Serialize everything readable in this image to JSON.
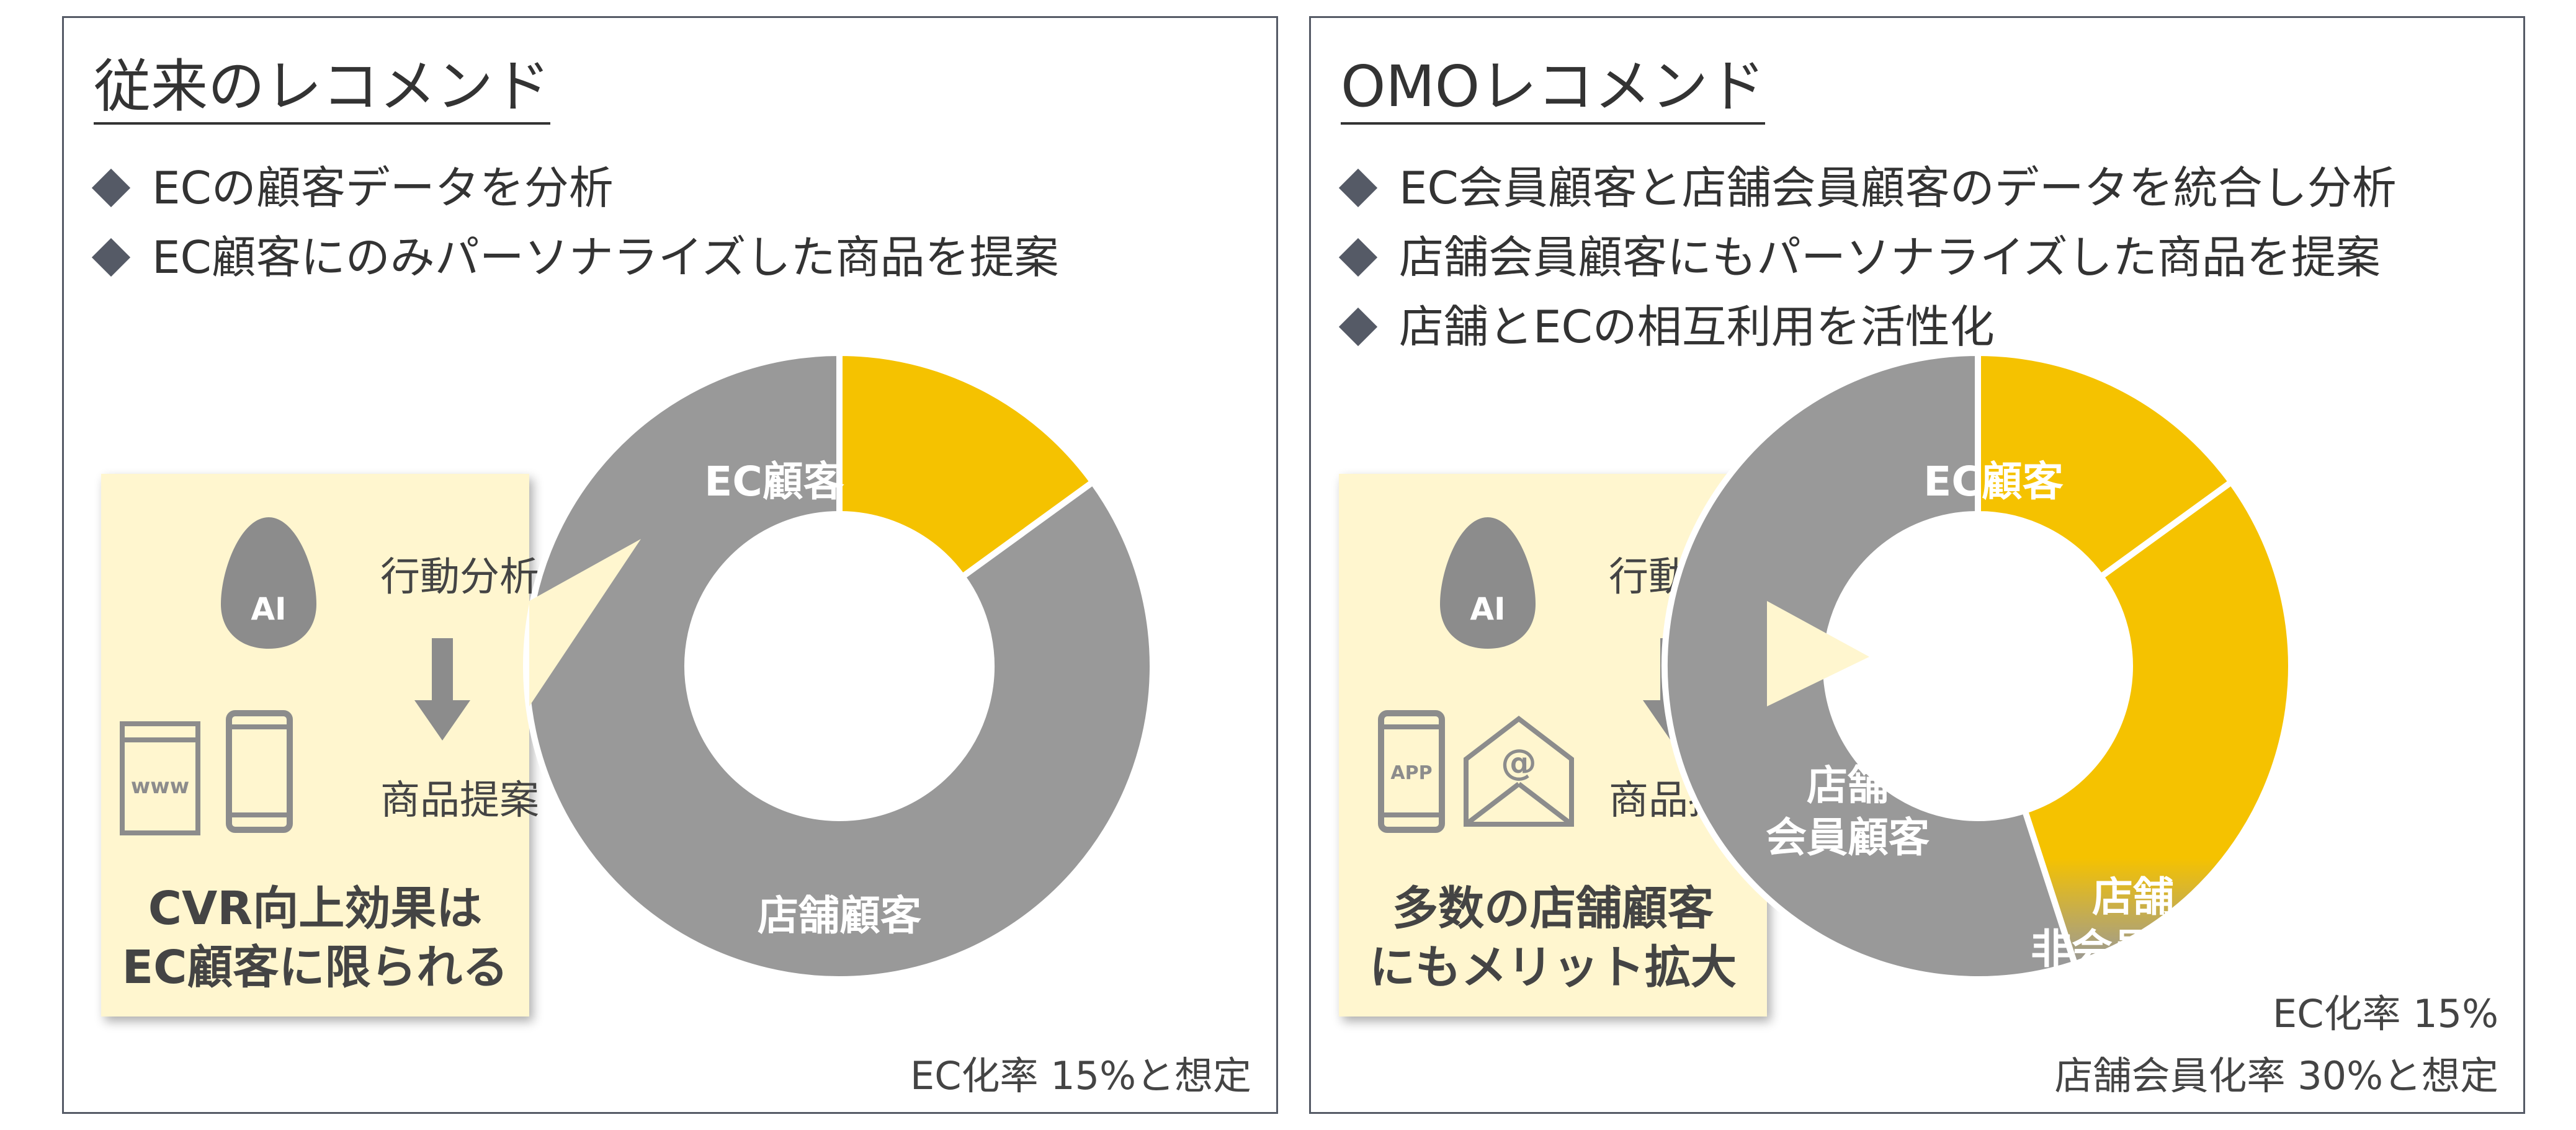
{
  "left": {
    "title": "従来のレコメンド",
    "bullets": [
      "ECの顧客データを分析",
      "EC顧客にのみパーソナライズした商品を提案"
    ],
    "callout": {
      "ai_label": "AI",
      "step1": "行動分析",
      "step2": "商品提案",
      "device_label": "www",
      "result_line1": "CVR向上効果は",
      "result_line2": "EC顧客に限られる"
    },
    "note": "EC化率 15%と想定"
  },
  "right": {
    "title": "OMOレコメンド",
    "bullets": [
      "EC会員顧客と店舗会員顧客のデータを統合し分析",
      "店舗会員顧客にもパーソナライズした商品を提案",
      "店舗とECの相互利用を活性化"
    ],
    "callout": {
      "ai_label": "AI",
      "step1": "行動分析",
      "step2": "商品提案",
      "app_label": "APP",
      "mail_symbol": "@",
      "result_line1": "多数の店舗顧客",
      "result_line2": "にもメリット拡大"
    },
    "note_line1": "EC化率 15%",
    "note_line2": "店舗会員化率 30%と想定"
  },
  "chart_data": [
    {
      "type": "pie",
      "variant": "donut",
      "labels": [
        "EC顧客",
        "店舗顧客"
      ],
      "values": [
        15,
        85
      ],
      "colors": [
        "#f5c200",
        "#999999"
      ]
    },
    {
      "type": "pie",
      "variant": "donut",
      "labels": [
        "EC顧客",
        "店舗 会員顧客",
        "店舗 非会員顧客"
      ],
      "values": [
        15,
        30,
        55
      ],
      "colors": [
        "#f5c200",
        "#f5c200",
        "#999999"
      ]
    }
  ],
  "colors": {
    "accent": "#f5c200",
    "gray": "#999999",
    "callout_bg": "#fff6cf",
    "border": "#555a66"
  }
}
